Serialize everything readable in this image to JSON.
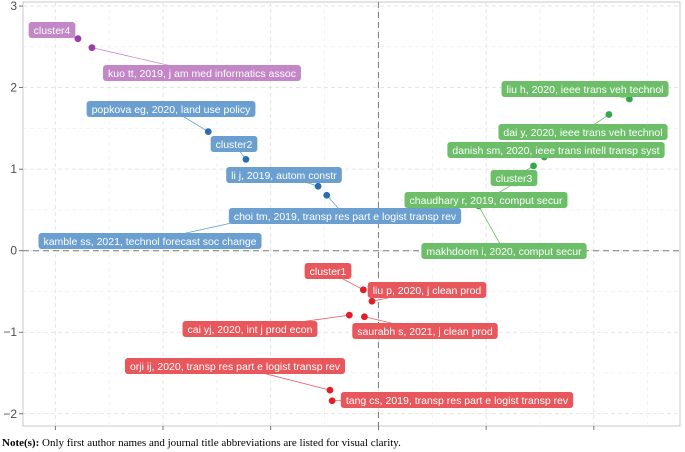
{
  "chart_data": {
    "type": "scatter",
    "title": "",
    "xlabel": "",
    "ylabel": "",
    "xlim": [
      -3.3,
      2.8
    ],
    "ylim": [
      -2.15,
      3.05
    ],
    "xticks": [
      -3,
      -2,
      -1,
      0,
      1,
      2
    ],
    "yticks": [
      -2,
      -1,
      0,
      1,
      2,
      3
    ],
    "grid": true,
    "reference_lines": {
      "x": 0,
      "y": 0
    },
    "colors": {
      "cluster1": "#e8575c",
      "cluster2": "#6a9fd0",
      "cluster3": "#6cbe68",
      "cluster4": "#c387c8",
      "point1": "#e01f26",
      "point2": "#2a6eb2",
      "point3": "#36a84a",
      "point4": "#9a3ea8"
    },
    "series": [
      {
        "name": "cluster1",
        "color_key": "cluster1",
        "points": [
          {
            "x": -0.14,
            "y": -0.48,
            "label": "cluster1"
          },
          {
            "x": -0.06,
            "y": -0.62,
            "label": "liu p, 2020, j clean prod"
          },
          {
            "x": -0.27,
            "y": -0.79,
            "label": "cai yj, 2020, int j prod econ"
          },
          {
            "x": -0.13,
            "y": -0.81,
            "label": "saurabh s, 2021, j clean prod"
          },
          {
            "x": -0.45,
            "y": -1.71,
            "label": "orji ij, 2020, transp res part e logist transp rev"
          },
          {
            "x": -0.43,
            "y": -1.84,
            "label": "tang cs, 2019, transp res part e logist transp rev"
          }
        ]
      },
      {
        "name": "cluster2",
        "color_key": "cluster2",
        "points": [
          {
            "x": -1.58,
            "y": 1.46,
            "label": "popkova eg, 2020, land use policy"
          },
          {
            "x": -1.23,
            "y": 1.12,
            "label": "cluster2"
          },
          {
            "x": -0.56,
            "y": 0.79,
            "label": "li j, 2019, autom constr"
          },
          {
            "x": -0.48,
            "y": 0.68,
            "label": "choi tm, 2019, transp res part e logist transp rev"
          },
          {
            "x": -0.95,
            "y": 0.46,
            "label": "kamble ss, 2021, technol forecast soc change"
          }
        ]
      },
      {
        "name": "cluster3",
        "color_key": "cluster3",
        "points": [
          {
            "x": 2.33,
            "y": 1.86,
            "label": "liu h, 2020, ieee trans veh technol"
          },
          {
            "x": 2.14,
            "y": 1.67,
            "label": "dai y, 2020, ieee trans veh technol"
          },
          {
            "x": 1.54,
            "y": 1.15,
            "label": "danish sm, 2020, ieee trans intell transp syst"
          },
          {
            "x": 1.44,
            "y": 1.04,
            "label": "cluster3"
          },
          {
            "x": 1.27,
            "y": 0.83,
            "label": "chaudhary r, 2019, comput secur"
          },
          {
            "x": 0.93,
            "y": 0.55,
            "label": "makhdoom i, 2020, comput secur"
          }
        ]
      },
      {
        "name": "cluster4",
        "color_key": "cluster4",
        "points": [
          {
            "x": -2.79,
            "y": 2.6,
            "label": "cluster4"
          },
          {
            "x": -2.66,
            "y": 2.49,
            "label": "kuo tt, 2019, j am med informatics assoc"
          }
        ]
      }
    ]
  },
  "note": {
    "prefix": "Note(s):",
    "text": " Only first author names and journal title abbreviations are listed for visual clarity."
  }
}
